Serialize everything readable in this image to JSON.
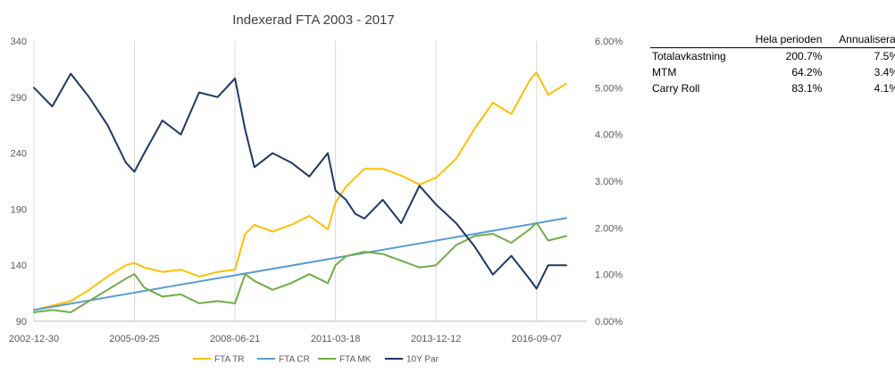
{
  "chart_data": {
    "type": "line",
    "title": "Indexerad FTA 2003 - 2017",
    "x_tick_labels": [
      "2002-12-30",
      "2005-09-25",
      "2008-06-21",
      "2011-03-18",
      "2013-12-12",
      "2016-09-07"
    ],
    "y_left": {
      "ylim": [
        90,
        340
      ],
      "ticks": [
        "90",
        "140",
        "190",
        "240",
        "290",
        "340"
      ]
    },
    "y_right": {
      "ylim": [
        0,
        6
      ],
      "ticks": [
        "0.00%",
        "1.00%",
        "2.00%",
        "3.00%",
        "4.00%",
        "5.00%",
        "6.00%"
      ]
    },
    "grid": "vertical",
    "legend_position": "bottom",
    "series": [
      {
        "name": "FTA TR",
        "axis": "left",
        "color": "#FFC000",
        "x": [
          "2002-12-30",
          "2003-06-30",
          "2003-12-31",
          "2004-06-30",
          "2004-12-31",
          "2005-06-30",
          "2005-09-25",
          "2005-12-31",
          "2006-06-30",
          "2006-12-31",
          "2007-06-30",
          "2007-12-31",
          "2008-06-21",
          "2008-09-30",
          "2008-12-31",
          "2009-06-30",
          "2009-12-31",
          "2010-06-30",
          "2010-12-31",
          "2011-03-18",
          "2011-06-30",
          "2011-09-30",
          "2011-12-31",
          "2012-06-30",
          "2012-12-31",
          "2013-06-30",
          "2013-12-12",
          "2014-06-30",
          "2014-12-31",
          "2015-06-30",
          "2015-12-31",
          "2016-06-30",
          "2016-09-07",
          "2016-12-31",
          "2017-06-30"
        ],
        "y": [
          100,
          104,
          108,
          118,
          130,
          140,
          142,
          138,
          134,
          136,
          130,
          134,
          136,
          168,
          176,
          170,
          176,
          184,
          172,
          196,
          210,
          218,
          226,
          226,
          220,
          212,
          218,
          235,
          262,
          285,
          275,
          305,
          312,
          292,
          302
        ]
      },
      {
        "name": "FTA CR",
        "axis": "left",
        "color": "#5B9BD5",
        "x": [
          "2002-12-30",
          "2017-06-30"
        ],
        "y": [
          100,
          182
        ]
      },
      {
        "name": "FTA MK",
        "axis": "left",
        "color": "#70AD47",
        "x": [
          "2002-12-30",
          "2003-06-30",
          "2003-12-31",
          "2004-06-30",
          "2004-12-31",
          "2005-06-30",
          "2005-09-25",
          "2005-12-31",
          "2006-06-30",
          "2006-12-31",
          "2007-06-30",
          "2007-12-31",
          "2008-06-21",
          "2008-09-30",
          "2008-12-31",
          "2009-06-30",
          "2009-12-31",
          "2010-06-30",
          "2010-12-31",
          "2011-03-18",
          "2011-06-30",
          "2011-09-30",
          "2011-12-31",
          "2012-06-30",
          "2012-12-31",
          "2013-06-30",
          "2013-12-12",
          "2014-06-30",
          "2014-12-31",
          "2015-06-30",
          "2015-12-31",
          "2016-06-30",
          "2016-09-07",
          "2016-12-31",
          "2017-06-30"
        ],
        "y": [
          98,
          100,
          98,
          108,
          118,
          128,
          132,
          120,
          112,
          114,
          106,
          108,
          106,
          132,
          126,
          118,
          124,
          132,
          124,
          140,
          148,
          150,
          152,
          150,
          144,
          138,
          140,
          158,
          166,
          168,
          160,
          172,
          178,
          162,
          166
        ]
      },
      {
        "name": "10Y Par",
        "axis": "right",
        "color": "#1F3864",
        "x": [
          "2002-12-30",
          "2003-06-30",
          "2003-12-31",
          "2004-06-30",
          "2004-12-31",
          "2005-06-30",
          "2005-09-25",
          "2005-12-31",
          "2006-06-30",
          "2006-12-31",
          "2007-06-30",
          "2007-12-31",
          "2008-06-21",
          "2008-09-30",
          "2008-12-31",
          "2009-06-30",
          "2009-12-31",
          "2010-06-30",
          "2010-12-31",
          "2011-03-18",
          "2011-06-30",
          "2011-09-30",
          "2011-12-31",
          "2012-06-30",
          "2012-12-31",
          "2013-06-30",
          "2013-12-12",
          "2014-06-30",
          "2014-12-31",
          "2015-06-30",
          "2015-12-31",
          "2016-06-30",
          "2016-09-07",
          "2016-12-31",
          "2017-06-30"
        ],
        "y": [
          5.0,
          4.6,
          5.3,
          4.8,
          4.2,
          3.4,
          3.2,
          3.6,
          4.3,
          4.0,
          4.9,
          4.8,
          5.2,
          4.1,
          3.3,
          3.6,
          3.4,
          3.1,
          3.6,
          2.8,
          2.6,
          2.3,
          2.2,
          2.6,
          2.1,
          2.9,
          2.5,
          2.1,
          1.6,
          1.0,
          1.4,
          0.9,
          0.7,
          1.2,
          1.2
        ]
      }
    ]
  },
  "table": {
    "columns": [
      "Hela perioden",
      "Annualiserat"
    ],
    "rows": [
      {
        "label": "Totalavkastning",
        "values": [
          "200.7%",
          "7.5%"
        ]
      },
      {
        "label": "MTM",
        "values": [
          "64.2%",
          "3.4%"
        ]
      },
      {
        "label": "Carry Roll",
        "values": [
          "83.1%",
          "4.1%"
        ]
      }
    ]
  }
}
